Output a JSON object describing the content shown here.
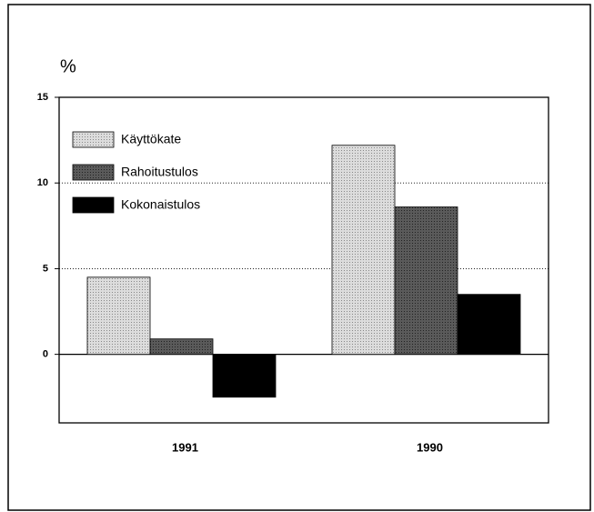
{
  "chart_data": {
    "type": "bar",
    "y_label": "%",
    "categories": [
      "1991",
      "1990"
    ],
    "series": [
      {
        "name": "Käyttökate",
        "color": "#dcdcdc",
        "values": [
          4.5,
          12.2
        ]
      },
      {
        "name": "Rahoitustulos",
        "color": "#5a5a5a",
        "values": [
          0.9,
          8.6
        ]
      },
      {
        "name": "Kokonaistulos",
        "color": "#000000",
        "values": [
          -2.5,
          3.5
        ]
      }
    ],
    "ylim": [
      -4,
      15
    ],
    "yticks": [
      0,
      5,
      10,
      15
    ],
    "grid": true,
    "legend": "upper-left"
  }
}
